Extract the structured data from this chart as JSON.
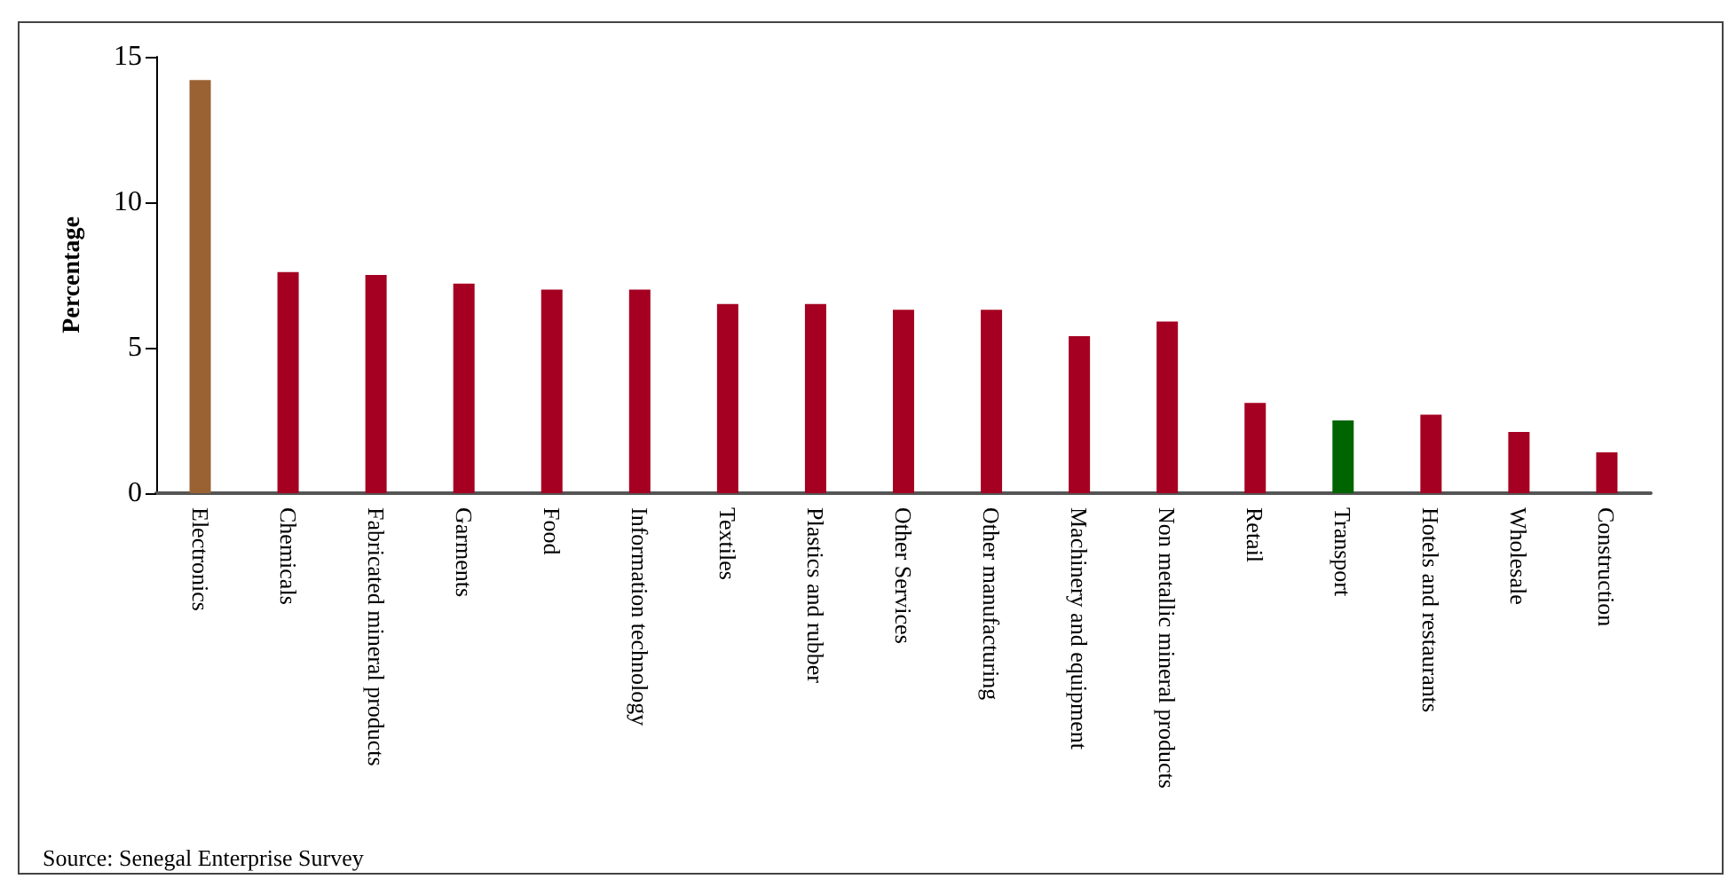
{
  "chart_data": {
    "type": "bar",
    "ylabel": "Percentage",
    "categories": [
      "Electronics",
      "Chemicals",
      "Fabricated mineral products",
      "Garments",
      "Food",
      "Information technology",
      "Textiles",
      "Plastics and rubber",
      "Other Services",
      "Other manufacturing",
      "Machinery and equipment",
      "Non metallic mineral products",
      "Retail",
      "Transport",
      "Hotels and restaurants",
      "Wholesale",
      "Construction"
    ],
    "values": [
      14.2,
      7.6,
      7.5,
      7.2,
      7.0,
      7.0,
      6.5,
      6.5,
      6.3,
      6.3,
      5.4,
      5.9,
      3.1,
      2.5,
      2.7,
      2.1,
      1.4
    ],
    "colors": [
      "#9a6232",
      "#a50021",
      "#a50021",
      "#a50021",
      "#a50021",
      "#a50021",
      "#a50021",
      "#a50021",
      "#a50021",
      "#a50021",
      "#a50021",
      "#a50021",
      "#a50021",
      "#006400",
      "#a50021",
      "#a50021",
      "#a50021"
    ],
    "ylim": [
      0,
      15
    ],
    "yticks": [
      0,
      5,
      10,
      15
    ],
    "grid": false,
    "annotations": [
      "Source: Senegal Enterprise Survey"
    ]
  }
}
